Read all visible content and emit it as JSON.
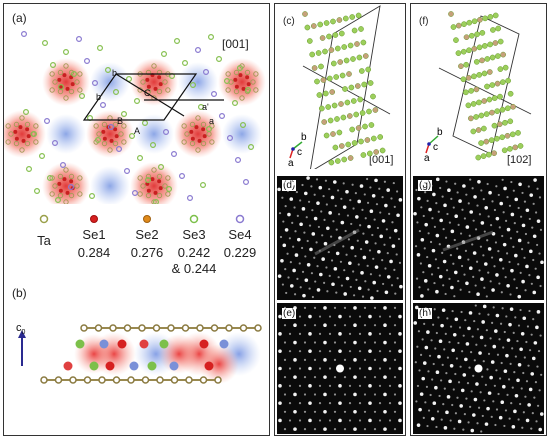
{
  "figure": {
    "panels": {
      "a": {
        "label": "(a)",
        "zone_axis": "[001]",
        "lattice_labels": [
          "b",
          "b'",
          "a'",
          "a",
          "A",
          "B",
          "C"
        ]
      },
      "b": {
        "label": "(b)",
        "axis_label": "c",
        "axis_subscript": "0"
      },
      "c": {
        "label": "(c)",
        "zone_axis": "[001]",
        "axes": [
          "b",
          "c",
          "a"
        ]
      },
      "d": {
        "label": "(d)"
      },
      "e": {
        "label": "(e)"
      },
      "f": {
        "label": "(f)",
        "zone_axis": "[102]",
        "axes": [
          "b",
          "c",
          "a"
        ]
      },
      "g": {
        "label": "(g)"
      },
      "h": {
        "label": "(h)"
      }
    },
    "legend": [
      {
        "name": "Ta",
        "value": "",
        "color": "#9aa04a"
      },
      {
        "name": "Se1",
        "value": "0.284",
        "color": "#d62020"
      },
      {
        "name": "Se2",
        "value": "0.276",
        "color": "#e08a1a"
      },
      {
        "name": "Se3",
        "value": "0.242",
        "value2": "& 0.244",
        "color": "#7cc04a"
      },
      {
        "name": "Se4",
        "value": "0.229",
        "color": "#8a7ad0"
      }
    ]
  }
}
